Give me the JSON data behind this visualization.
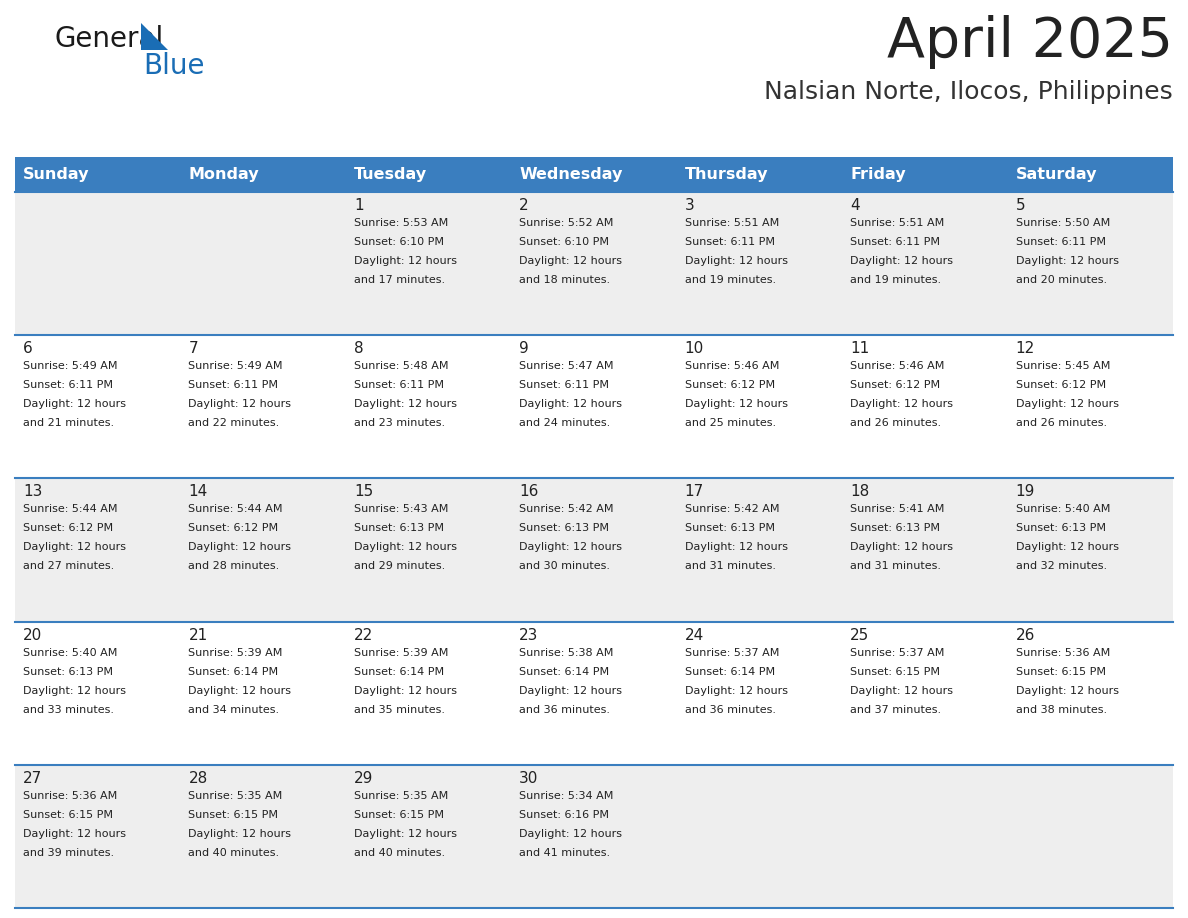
{
  "title": "April 2025",
  "subtitle": "Nalsian Norte, Ilocos, Philippines",
  "header_bg_color": "#3a7ebf",
  "header_text_color": "#ffffff",
  "day_names": [
    "Sunday",
    "Monday",
    "Tuesday",
    "Wednesday",
    "Thursday",
    "Friday",
    "Saturday"
  ],
  "row_bg_even": "#eeeeee",
  "row_bg_odd": "#ffffff",
  "cell_border_color": "#3a7ebf",
  "text_color": "#222222",
  "day_number_color": "#222222",
  "title_color": "#222222",
  "subtitle_color": "#333333",
  "logo_general_color": "#1a1a1a",
  "logo_blue_color": "#1a6db5",
  "calendar_data": [
    [
      {
        "day": null,
        "info": null
      },
      {
        "day": null,
        "info": null
      },
      {
        "day": 1,
        "info": "Sunrise: 5:53 AM\nSunset: 6:10 PM\nDaylight: 12 hours\nand 17 minutes."
      },
      {
        "day": 2,
        "info": "Sunrise: 5:52 AM\nSunset: 6:10 PM\nDaylight: 12 hours\nand 18 minutes."
      },
      {
        "day": 3,
        "info": "Sunrise: 5:51 AM\nSunset: 6:11 PM\nDaylight: 12 hours\nand 19 minutes."
      },
      {
        "day": 4,
        "info": "Sunrise: 5:51 AM\nSunset: 6:11 PM\nDaylight: 12 hours\nand 19 minutes."
      },
      {
        "day": 5,
        "info": "Sunrise: 5:50 AM\nSunset: 6:11 PM\nDaylight: 12 hours\nand 20 minutes."
      }
    ],
    [
      {
        "day": 6,
        "info": "Sunrise: 5:49 AM\nSunset: 6:11 PM\nDaylight: 12 hours\nand 21 minutes."
      },
      {
        "day": 7,
        "info": "Sunrise: 5:49 AM\nSunset: 6:11 PM\nDaylight: 12 hours\nand 22 minutes."
      },
      {
        "day": 8,
        "info": "Sunrise: 5:48 AM\nSunset: 6:11 PM\nDaylight: 12 hours\nand 23 minutes."
      },
      {
        "day": 9,
        "info": "Sunrise: 5:47 AM\nSunset: 6:11 PM\nDaylight: 12 hours\nand 24 minutes."
      },
      {
        "day": 10,
        "info": "Sunrise: 5:46 AM\nSunset: 6:12 PM\nDaylight: 12 hours\nand 25 minutes."
      },
      {
        "day": 11,
        "info": "Sunrise: 5:46 AM\nSunset: 6:12 PM\nDaylight: 12 hours\nand 26 minutes."
      },
      {
        "day": 12,
        "info": "Sunrise: 5:45 AM\nSunset: 6:12 PM\nDaylight: 12 hours\nand 26 minutes."
      }
    ],
    [
      {
        "day": 13,
        "info": "Sunrise: 5:44 AM\nSunset: 6:12 PM\nDaylight: 12 hours\nand 27 minutes."
      },
      {
        "day": 14,
        "info": "Sunrise: 5:44 AM\nSunset: 6:12 PM\nDaylight: 12 hours\nand 28 minutes."
      },
      {
        "day": 15,
        "info": "Sunrise: 5:43 AM\nSunset: 6:13 PM\nDaylight: 12 hours\nand 29 minutes."
      },
      {
        "day": 16,
        "info": "Sunrise: 5:42 AM\nSunset: 6:13 PM\nDaylight: 12 hours\nand 30 minutes."
      },
      {
        "day": 17,
        "info": "Sunrise: 5:42 AM\nSunset: 6:13 PM\nDaylight: 12 hours\nand 31 minutes."
      },
      {
        "day": 18,
        "info": "Sunrise: 5:41 AM\nSunset: 6:13 PM\nDaylight: 12 hours\nand 31 minutes."
      },
      {
        "day": 19,
        "info": "Sunrise: 5:40 AM\nSunset: 6:13 PM\nDaylight: 12 hours\nand 32 minutes."
      }
    ],
    [
      {
        "day": 20,
        "info": "Sunrise: 5:40 AM\nSunset: 6:13 PM\nDaylight: 12 hours\nand 33 minutes."
      },
      {
        "day": 21,
        "info": "Sunrise: 5:39 AM\nSunset: 6:14 PM\nDaylight: 12 hours\nand 34 minutes."
      },
      {
        "day": 22,
        "info": "Sunrise: 5:39 AM\nSunset: 6:14 PM\nDaylight: 12 hours\nand 35 minutes."
      },
      {
        "day": 23,
        "info": "Sunrise: 5:38 AM\nSunset: 6:14 PM\nDaylight: 12 hours\nand 36 minutes."
      },
      {
        "day": 24,
        "info": "Sunrise: 5:37 AM\nSunset: 6:14 PM\nDaylight: 12 hours\nand 36 minutes."
      },
      {
        "day": 25,
        "info": "Sunrise: 5:37 AM\nSunset: 6:15 PM\nDaylight: 12 hours\nand 37 minutes."
      },
      {
        "day": 26,
        "info": "Sunrise: 5:36 AM\nSunset: 6:15 PM\nDaylight: 12 hours\nand 38 minutes."
      }
    ],
    [
      {
        "day": 27,
        "info": "Sunrise: 5:36 AM\nSunset: 6:15 PM\nDaylight: 12 hours\nand 39 minutes."
      },
      {
        "day": 28,
        "info": "Sunrise: 5:35 AM\nSunset: 6:15 PM\nDaylight: 12 hours\nand 40 minutes."
      },
      {
        "day": 29,
        "info": "Sunrise: 5:35 AM\nSunset: 6:15 PM\nDaylight: 12 hours\nand 40 minutes."
      },
      {
        "day": 30,
        "info": "Sunrise: 5:34 AM\nSunset: 6:16 PM\nDaylight: 12 hours\nand 41 minutes."
      },
      {
        "day": null,
        "info": null
      },
      {
        "day": null,
        "info": null
      },
      {
        "day": null,
        "info": null
      }
    ]
  ]
}
